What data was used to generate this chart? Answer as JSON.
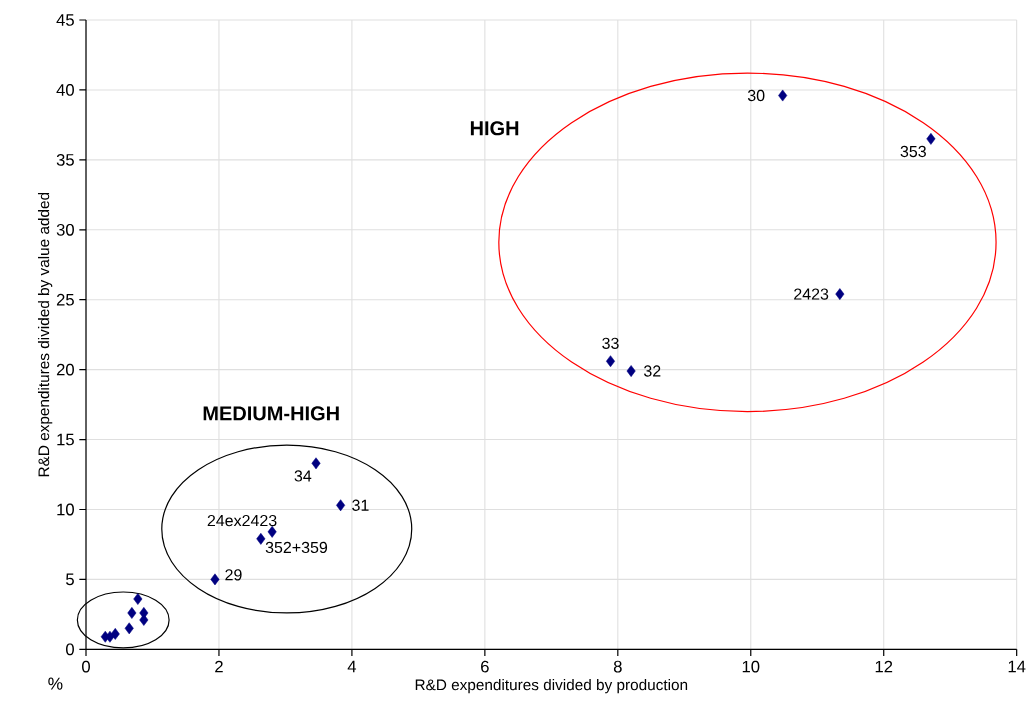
{
  "chart_data": {
    "type": "scatter",
    "xlabel": "R&D expenditures divided by production",
    "ylabel": "R&D expenditures divided by value added",
    "x": [
      10.48,
      12.71,
      11.34,
      7.89,
      8.2,
      3.46,
      3.83,
      2.8,
      2.63,
      1.94,
      0.78,
      0.69,
      0.87,
      0.87,
      0.65,
      0.44,
      0.33,
      0.29,
      0.36
    ],
    "values": [
      39.6,
      36.5,
      25.4,
      20.6,
      19.9,
      13.3,
      10.3,
      8.4,
      7.9,
      5.0,
      3.6,
      2.6,
      2.6,
      2.1,
      1.5,
      1.1,
      null,
      0.9,
      0.9
    ],
    "color": "#000080",
    "marker": "diamond",
    "xlim": [
      0,
      14
    ],
    "xticks": [
      0,
      2,
      4,
      6,
      8,
      10,
      12,
      14
    ],
    "ylim": [
      0,
      45
    ],
    "yticks": [
      0,
      5,
      10,
      15,
      20,
      25,
      30,
      35,
      40,
      45
    ],
    "grid": true,
    "annotations": [
      "HIGH",
      "MEDIUM-HIGH",
      {
        "text": "30",
        "x": 10.48,
        "y": 39.6
      },
      {
        "text": "353",
        "x": 12.71,
        "y": 36.5
      },
      {
        "text": "2423",
        "x": 11.34,
        "y": 25.4
      },
      {
        "text": "33",
        "x": 7.89,
        "y": 20.6
      },
      {
        "text": "32",
        "x": 8.2,
        "y": 19.9
      },
      {
        "text": "34",
        "x": 3.46,
        "y": 13.3
      },
      {
        "text": "31",
        "x": 3.83,
        "y": 10.3
      },
      {
        "text": "24ex2423",
        "x": 2.8,
        "y": 8.4
      },
      {
        "text": "352+359",
        "x": 2.63,
        "y": 7.9
      },
      {
        "text": "29",
        "x": 1.94,
        "y": 5.0
      },
      "%"
    ]
  }
}
